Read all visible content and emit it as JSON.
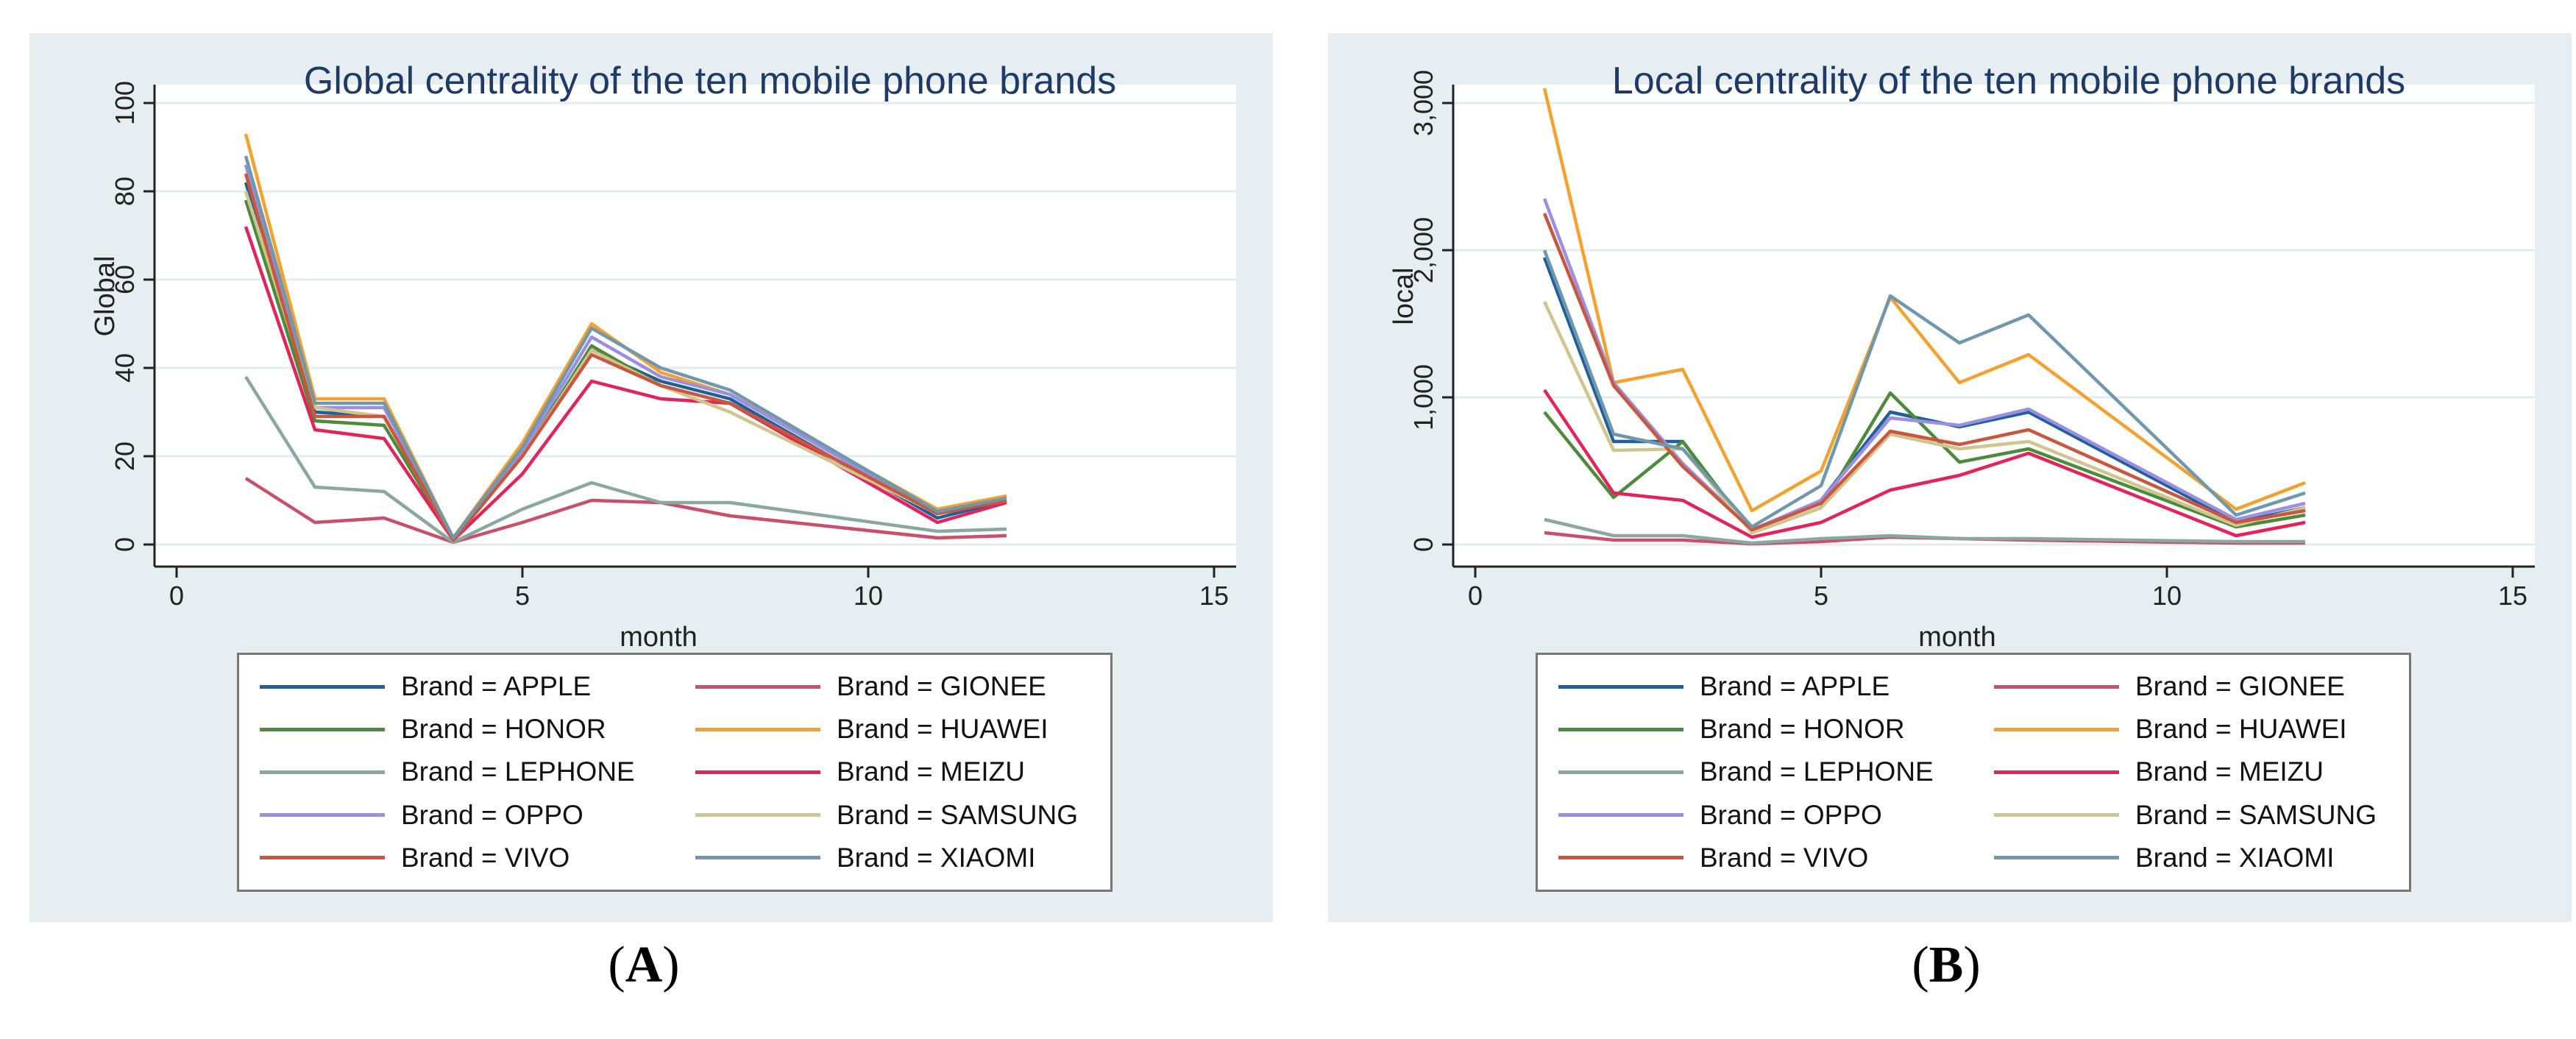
{
  "chart_data": [
    {
      "type": "line",
      "title": "Global centrality of the ten mobile phone brands",
      "xlabel": "month",
      "ylabel": "Global",
      "xlim": [
        0,
        15
      ],
      "ylim": [
        0,
        100
      ],
      "xticks": [
        0,
        5,
        10,
        15
      ],
      "yticks": [
        0,
        20,
        40,
        60,
        80,
        100
      ],
      "ytick_labels": [
        "0",
        "20",
        "40",
        "60",
        "80",
        "100"
      ],
      "x": [
        1,
        2,
        3,
        4,
        5,
        6,
        7,
        8,
        11,
        12
      ],
      "series": [
        {
          "name": "Brand = APPLE",
          "color": "#1f5f9a",
          "values": [
            82,
            30,
            29,
            1.5,
            21,
            44,
            37,
            33,
            6,
            10
          ]
        },
        {
          "name": "Brand = GIONEE",
          "color": "#c9506c",
          "values": [
            15,
            5,
            6,
            0.5,
            5,
            10,
            9.5,
            6.5,
            1.5,
            2
          ]
        },
        {
          "name": "Brand = HONOR",
          "color": "#4d8a3a",
          "values": [
            78,
            28,
            27,
            1,
            20,
            45,
            36,
            32,
            7,
            10
          ]
        },
        {
          "name": "Brand = HUAWEI",
          "color": "#f5a12e",
          "values": [
            93,
            33,
            33,
            1.5,
            23,
            50,
            39,
            34,
            8,
            11
          ]
        },
        {
          "name": "Brand = LEPHONE",
          "color": "#8aa8a0",
          "values": [
            38,
            13,
            12,
            0.5,
            8,
            14,
            9.5,
            9.5,
            3,
            3.5
          ]
        },
        {
          "name": "Brand = MEIZU",
          "color": "#e2245a",
          "values": [
            72,
            26,
            24,
            1,
            16,
            37,
            33,
            32,
            5,
            9.5
          ]
        },
        {
          "name": "Brand = OPPO",
          "color": "#9a8fe0",
          "values": [
            86,
            31,
            31,
            1.5,
            21,
            47,
            38,
            34,
            7,
            10
          ]
        },
        {
          "name": "Brand = SAMSUNG",
          "color": "#cfc58f",
          "values": [
            80,
            31,
            29,
            1,
            20,
            44,
            36,
            30,
            7,
            10
          ]
        },
        {
          "name": "Brand = VIVO",
          "color": "#c8573e",
          "values": [
            84,
            29,
            29,
            1,
            20,
            43,
            36,
            32,
            7,
            10
          ]
        },
        {
          "name": "Brand = XIAOMI",
          "color": "#6f98ad",
          "values": [
            88,
            32,
            32,
            1.5,
            22,
            49,
            40,
            35,
            7.5,
            10.5
          ]
        }
      ]
    },
    {
      "type": "line",
      "title": "Local centrality of the ten mobile phone brands",
      "xlabel": "month",
      "ylabel": "local",
      "xlim": [
        0,
        15
      ],
      "ylim": [
        0,
        3000
      ],
      "xticks": [
        0,
        5,
        10,
        15
      ],
      "yticks": [
        0,
        1000,
        2000,
        3000
      ],
      "ytick_labels": [
        "0",
        "1,000",
        "2,000",
        "3,000"
      ],
      "x": [
        1,
        2,
        3,
        4,
        5,
        6,
        7,
        8,
        11,
        12
      ],
      "series": [
        {
          "name": "Brand = APPLE",
          "color": "#1f5f9a",
          "values": [
            1950,
            700,
            700,
            80,
            300,
            900,
            800,
            900,
            150,
            250
          ]
        },
        {
          "name": "Brand = GIONEE",
          "color": "#c9506c",
          "values": [
            80,
            30,
            30,
            5,
            20,
            50,
            40,
            30,
            10,
            10
          ]
        },
        {
          "name": "Brand = HONOR",
          "color": "#4d8a3a",
          "values": [
            900,
            320,
            700,
            80,
            250,
            1030,
            560,
            650,
            120,
            200
          ]
        },
        {
          "name": "Brand = HUAWEI",
          "color": "#f5a12e",
          "values": [
            3100,
            1100,
            1190,
            230,
            500,
            1680,
            1100,
            1290,
            240,
            420
          ]
        },
        {
          "name": "Brand = LEPHONE",
          "color": "#8aa8a0",
          "values": [
            170,
            60,
            60,
            10,
            40,
            60,
            40,
            40,
            20,
            20
          ]
        },
        {
          "name": "Brand = MEIZU",
          "color": "#e2245a",
          "values": [
            1050,
            350,
            300,
            50,
            150,
            370,
            470,
            620,
            60,
            150
          ]
        },
        {
          "name": "Brand = OPPO",
          "color": "#9a8fe0",
          "values": [
            2350,
            1100,
            550,
            100,
            300,
            860,
            810,
            920,
            170,
            280
          ]
        },
        {
          "name": "Brand = SAMSUNG",
          "color": "#cfc58f",
          "values": [
            1650,
            640,
            650,
            80,
            250,
            750,
            650,
            700,
            130,
            250
          ]
        },
        {
          "name": "Brand = VIVO",
          "color": "#c8573e",
          "values": [
            2250,
            1080,
            530,
            100,
            280,
            770,
            680,
            780,
            150,
            230
          ]
        },
        {
          "name": "Brand = XIAOMI",
          "color": "#6f98ad",
          "values": [
            2000,
            750,
            650,
            120,
            400,
            1690,
            1370,
            1560,
            200,
            350
          ]
        }
      ]
    }
  ],
  "labels": {
    "panel_a": "A",
    "panel_b": "B",
    "paren_open": "(",
    "paren_close": ")"
  }
}
